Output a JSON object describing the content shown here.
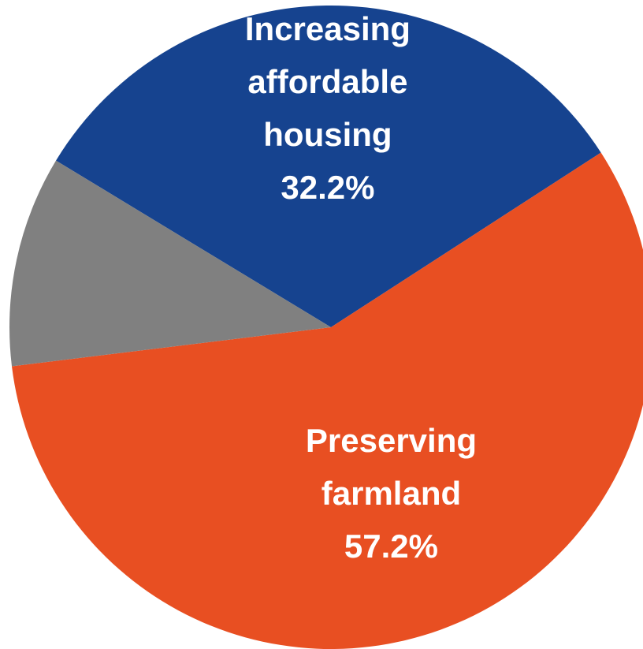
{
  "chart_data": {
    "type": "pie",
    "slices": [
      {
        "label_lines": [
          "Increasing",
          "affordable",
          "housing"
        ],
        "value_label": "32.2%",
        "value": 32.2,
        "color": "#16438f"
      },
      {
        "label_lines": [
          "Preserving",
          "farmland"
        ],
        "value_label": "57.2%",
        "value": 57.2,
        "color": "#e84f22"
      },
      {
        "label_lines": [],
        "value_label": "",
        "value": 10.6,
        "color": "#808080"
      }
    ]
  }
}
